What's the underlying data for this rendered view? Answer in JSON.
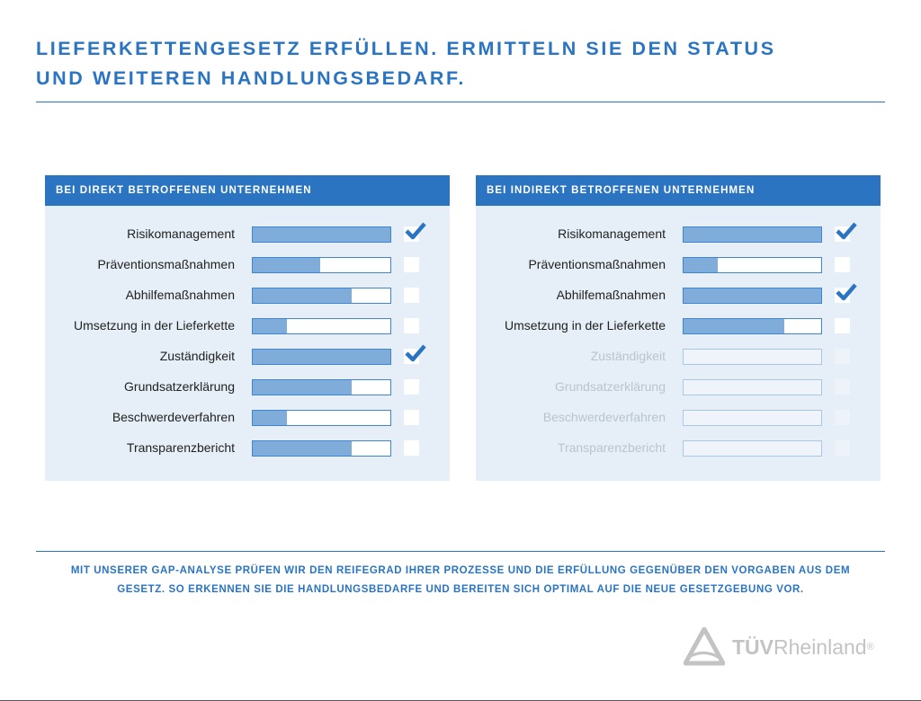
{
  "title": [
    "LIEFERKETTENGESETZ ERFÜLLEN. ERMITTELN SIE DEN STATUS",
    "UND WEITEREN HANDLUNGSBEDARF."
  ],
  "colors": {
    "accent": "#2a74c2",
    "fill": "#80acd9",
    "panel": "#e6eff8"
  },
  "panels": [
    {
      "heading": "BEI DIREKT BETROFFENEN UNTERNEHMEN",
      "rows": [
        {
          "label": "Risikomanagement",
          "progress": 100,
          "checked": true,
          "active": true
        },
        {
          "label": "Präventionsmaßnahmen",
          "progress": 49,
          "checked": false,
          "active": true
        },
        {
          "label": "Abhilfemaßnahmen",
          "progress": 72,
          "checked": false,
          "active": true
        },
        {
          "label": "Umsetzung in der Lieferkette",
          "progress": 25,
          "checked": false,
          "active": true
        },
        {
          "label": "Zuständigkeit",
          "progress": 100,
          "checked": true,
          "active": true
        },
        {
          "label": "Grundsatzerklärung",
          "progress": 72,
          "checked": false,
          "active": true
        },
        {
          "label": "Beschwerdeverfahren",
          "progress": 25,
          "checked": false,
          "active": true
        },
        {
          "label": "Transparenzbericht",
          "progress": 72,
          "checked": false,
          "active": true
        }
      ]
    },
    {
      "heading": "BEI INDIREKT BETROFFENEN UNTERNEHMEN",
      "rows": [
        {
          "label": "Risikomanagement",
          "progress": 100,
          "checked": true,
          "active": true
        },
        {
          "label": "Präventionsmaßnahmen",
          "progress": 25,
          "checked": false,
          "active": true
        },
        {
          "label": "Abhilfemaßnahmen",
          "progress": 100,
          "checked": true,
          "active": true
        },
        {
          "label": "Umsetzung in der Lieferkette",
          "progress": 73,
          "checked": false,
          "active": true
        },
        {
          "label": "Zuständigkeit",
          "progress": 0,
          "checked": false,
          "active": false
        },
        {
          "label": "Grundsatzerklärung",
          "progress": 0,
          "checked": false,
          "active": false
        },
        {
          "label": "Beschwerdeverfahren",
          "progress": 0,
          "checked": false,
          "active": false
        },
        {
          "label": "Transparenzbericht",
          "progress": 0,
          "checked": false,
          "active": false
        }
      ]
    }
  ],
  "footer": [
    "MIT UNSERER GAP-ANALYSE PRÜFEN WIR DEN REIFEGRAD IHRER PROZESSE UND DIE ERFÜLLUNG GEGENÜBER DEN VORGABEN AUS DEM",
    "GESETZ. SO ERKENNEN SIE DIE HANDLUNGSBEDARFE UND BEREITEN SICH OPTIMAL AUF DIE NEUE GESETZGEBUNG VOR."
  ],
  "logo": {
    "bold": "TÜV",
    "regular": "Rheinland",
    "mark": "®"
  }
}
